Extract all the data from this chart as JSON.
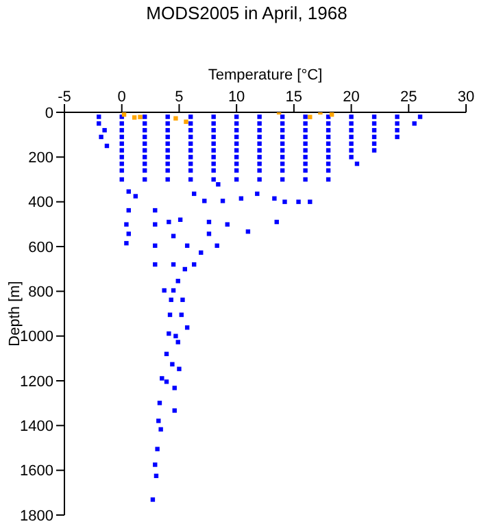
{
  "chart_data": {
    "type": "scatter",
    "title": "MODS2005 in April, 1968",
    "xlabel": "Temperature [°C]",
    "ylabel": "Depth [m]",
    "xlim": [
      -5,
      30
    ],
    "xticks": [
      -5,
      0,
      5,
      10,
      15,
      20,
      25,
      30
    ],
    "ylim": [
      1800,
      0
    ],
    "yticks": [
      0,
      200,
      400,
      600,
      800,
      1000,
      1200,
      1400,
      1600,
      1800
    ],
    "grid": false,
    "legend": false,
    "marker": "square",
    "series": [
      {
        "color": "#0000ff",
        "x": [
          -2,
          0,
          2,
          4,
          6,
          8,
          10,
          12,
          14,
          16,
          18,
          20,
          22,
          24,
          26,
          -2,
          0,
          2,
          4,
          6,
          8,
          10,
          12,
          14,
          16,
          18,
          20,
          22,
          24,
          25.5,
          -1.5,
          0,
          2,
          4,
          6,
          8,
          10,
          12,
          14,
          16,
          18,
          20,
          22,
          24,
          -1.8,
          0,
          2,
          4,
          6,
          8,
          10,
          12,
          14,
          16,
          18,
          20,
          22,
          24,
          0,
          2,
          4,
          6,
          8,
          10,
          12,
          14,
          16,
          18,
          20,
          22,
          -1.3,
          0,
          2,
          4,
          6,
          8,
          10,
          12,
          14,
          16,
          18,
          20,
          22,
          0,
          2,
          4,
          6,
          8,
          10,
          12,
          14,
          16,
          18,
          20,
          0,
          2,
          4,
          6,
          8,
          10,
          12,
          14,
          16,
          18,
          20.5,
          0,
          2,
          4,
          6,
          8,
          10,
          12,
          14,
          16,
          18,
          0,
          2,
          4,
          6,
          8,
          10,
          12,
          14,
          16,
          18,
          0.6,
          1.2,
          0.6,
          0.4,
          0.6,
          0.4,
          2.9,
          2.9,
          2.9,
          2.9,
          4.1,
          5.1,
          6.3,
          7.2,
          7.6,
          8.4,
          8.8,
          9.2,
          10.4,
          11,
          11.8,
          13.3,
          13.5,
          14.2,
          15.4,
          16.4,
          4.5,
          5.7,
          6.9,
          8.3,
          7.6,
          4.5,
          5.5,
          6.3,
          4.9,
          4.5,
          3.7,
          4.3,
          5.3,
          4.2,
          5.2,
          5.7,
          4.1,
          4.7,
          4.9,
          3.9,
          4.4,
          5,
          3.5,
          3.9,
          4.6,
          3.3,
          4.6,
          3.2,
          3.4,
          3.1,
          2.9,
          3,
          2.7
        ],
        "values": [
          20,
          20,
          20,
          20,
          20,
          20,
          20,
          20,
          20,
          20,
          20,
          20,
          20,
          20,
          20,
          50,
          50,
          50,
          50,
          50,
          50,
          50,
          50,
          50,
          50,
          50,
          50,
          50,
          50,
          50,
          80,
          80,
          80,
          80,
          80,
          80,
          80,
          80,
          80,
          80,
          80,
          80,
          80,
          80,
          110,
          110,
          110,
          110,
          110,
          110,
          110,
          110,
          110,
          110,
          110,
          110,
          110,
          110,
          140,
          140,
          140,
          140,
          140,
          140,
          140,
          140,
          140,
          140,
          140,
          140,
          150,
          170,
          170,
          170,
          170,
          170,
          170,
          170,
          170,
          170,
          170,
          170,
          170,
          200,
          200,
          200,
          200,
          200,
          200,
          200,
          200,
          200,
          200,
          200,
          230,
          230,
          230,
          230,
          230,
          230,
          230,
          230,
          230,
          230,
          230,
          260,
          260,
          260,
          260,
          260,
          260,
          260,
          260,
          260,
          260,
          300,
          300,
          300,
          300,
          300,
          300,
          300,
          300,
          300,
          300,
          354,
          375,
          438,
          501,
          543,
          585,
          438,
          501,
          596,
          680,
          490,
          480,
          364,
          396,
          490,
          322,
          396,
          501,
          385,
          533,
          364,
          385,
          490,
          400,
          400,
          400,
          553,
          596,
          627,
          596,
          543,
          680,
          701,
          680,
          754,
          796,
          796,
          838,
          838,
          905,
          905,
          962,
          989,
          1000,
          1027,
          1080,
          1126,
          1147,
          1189,
          1204,
          1232,
          1299,
          1333,
          1379,
          1417,
          1505,
          1575,
          1625,
          1731
        ]
      },
      {
        "color": "#ffa500",
        "x": [
          0.2,
          1.1,
          1.6,
          4.7,
          5.6,
          13.7,
          16.4,
          17.3,
          18.3
        ],
        "values": [
          10,
          23,
          21,
          27,
          42,
          0,
          21,
          0,
          10
        ]
      }
    ]
  }
}
